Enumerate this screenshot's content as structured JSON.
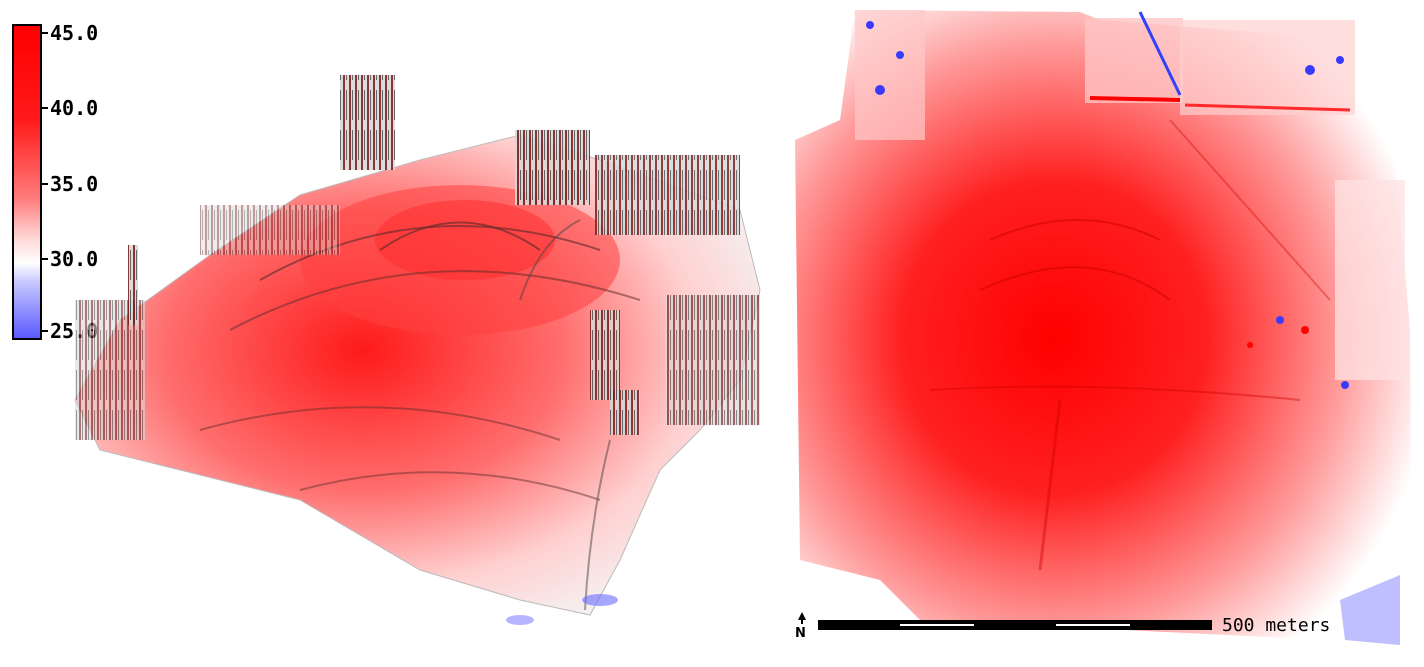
{
  "legend": {
    "ticks": [
      "45.0",
      "40.0",
      "35.0",
      "30.0",
      "25.0"
    ],
    "colors": {
      "high": "#ff0000",
      "mid": "#ffffff",
      "low": "#5a5aff"
    }
  },
  "scale": {
    "label": "500 meters"
  },
  "north": {
    "icon": "north-arrow-icon"
  },
  "maps": [
    {
      "name": "perspective-elevation-view",
      "view": "3D perspective"
    },
    {
      "name": "plan-elevation-view",
      "view": "top-down"
    }
  ]
}
